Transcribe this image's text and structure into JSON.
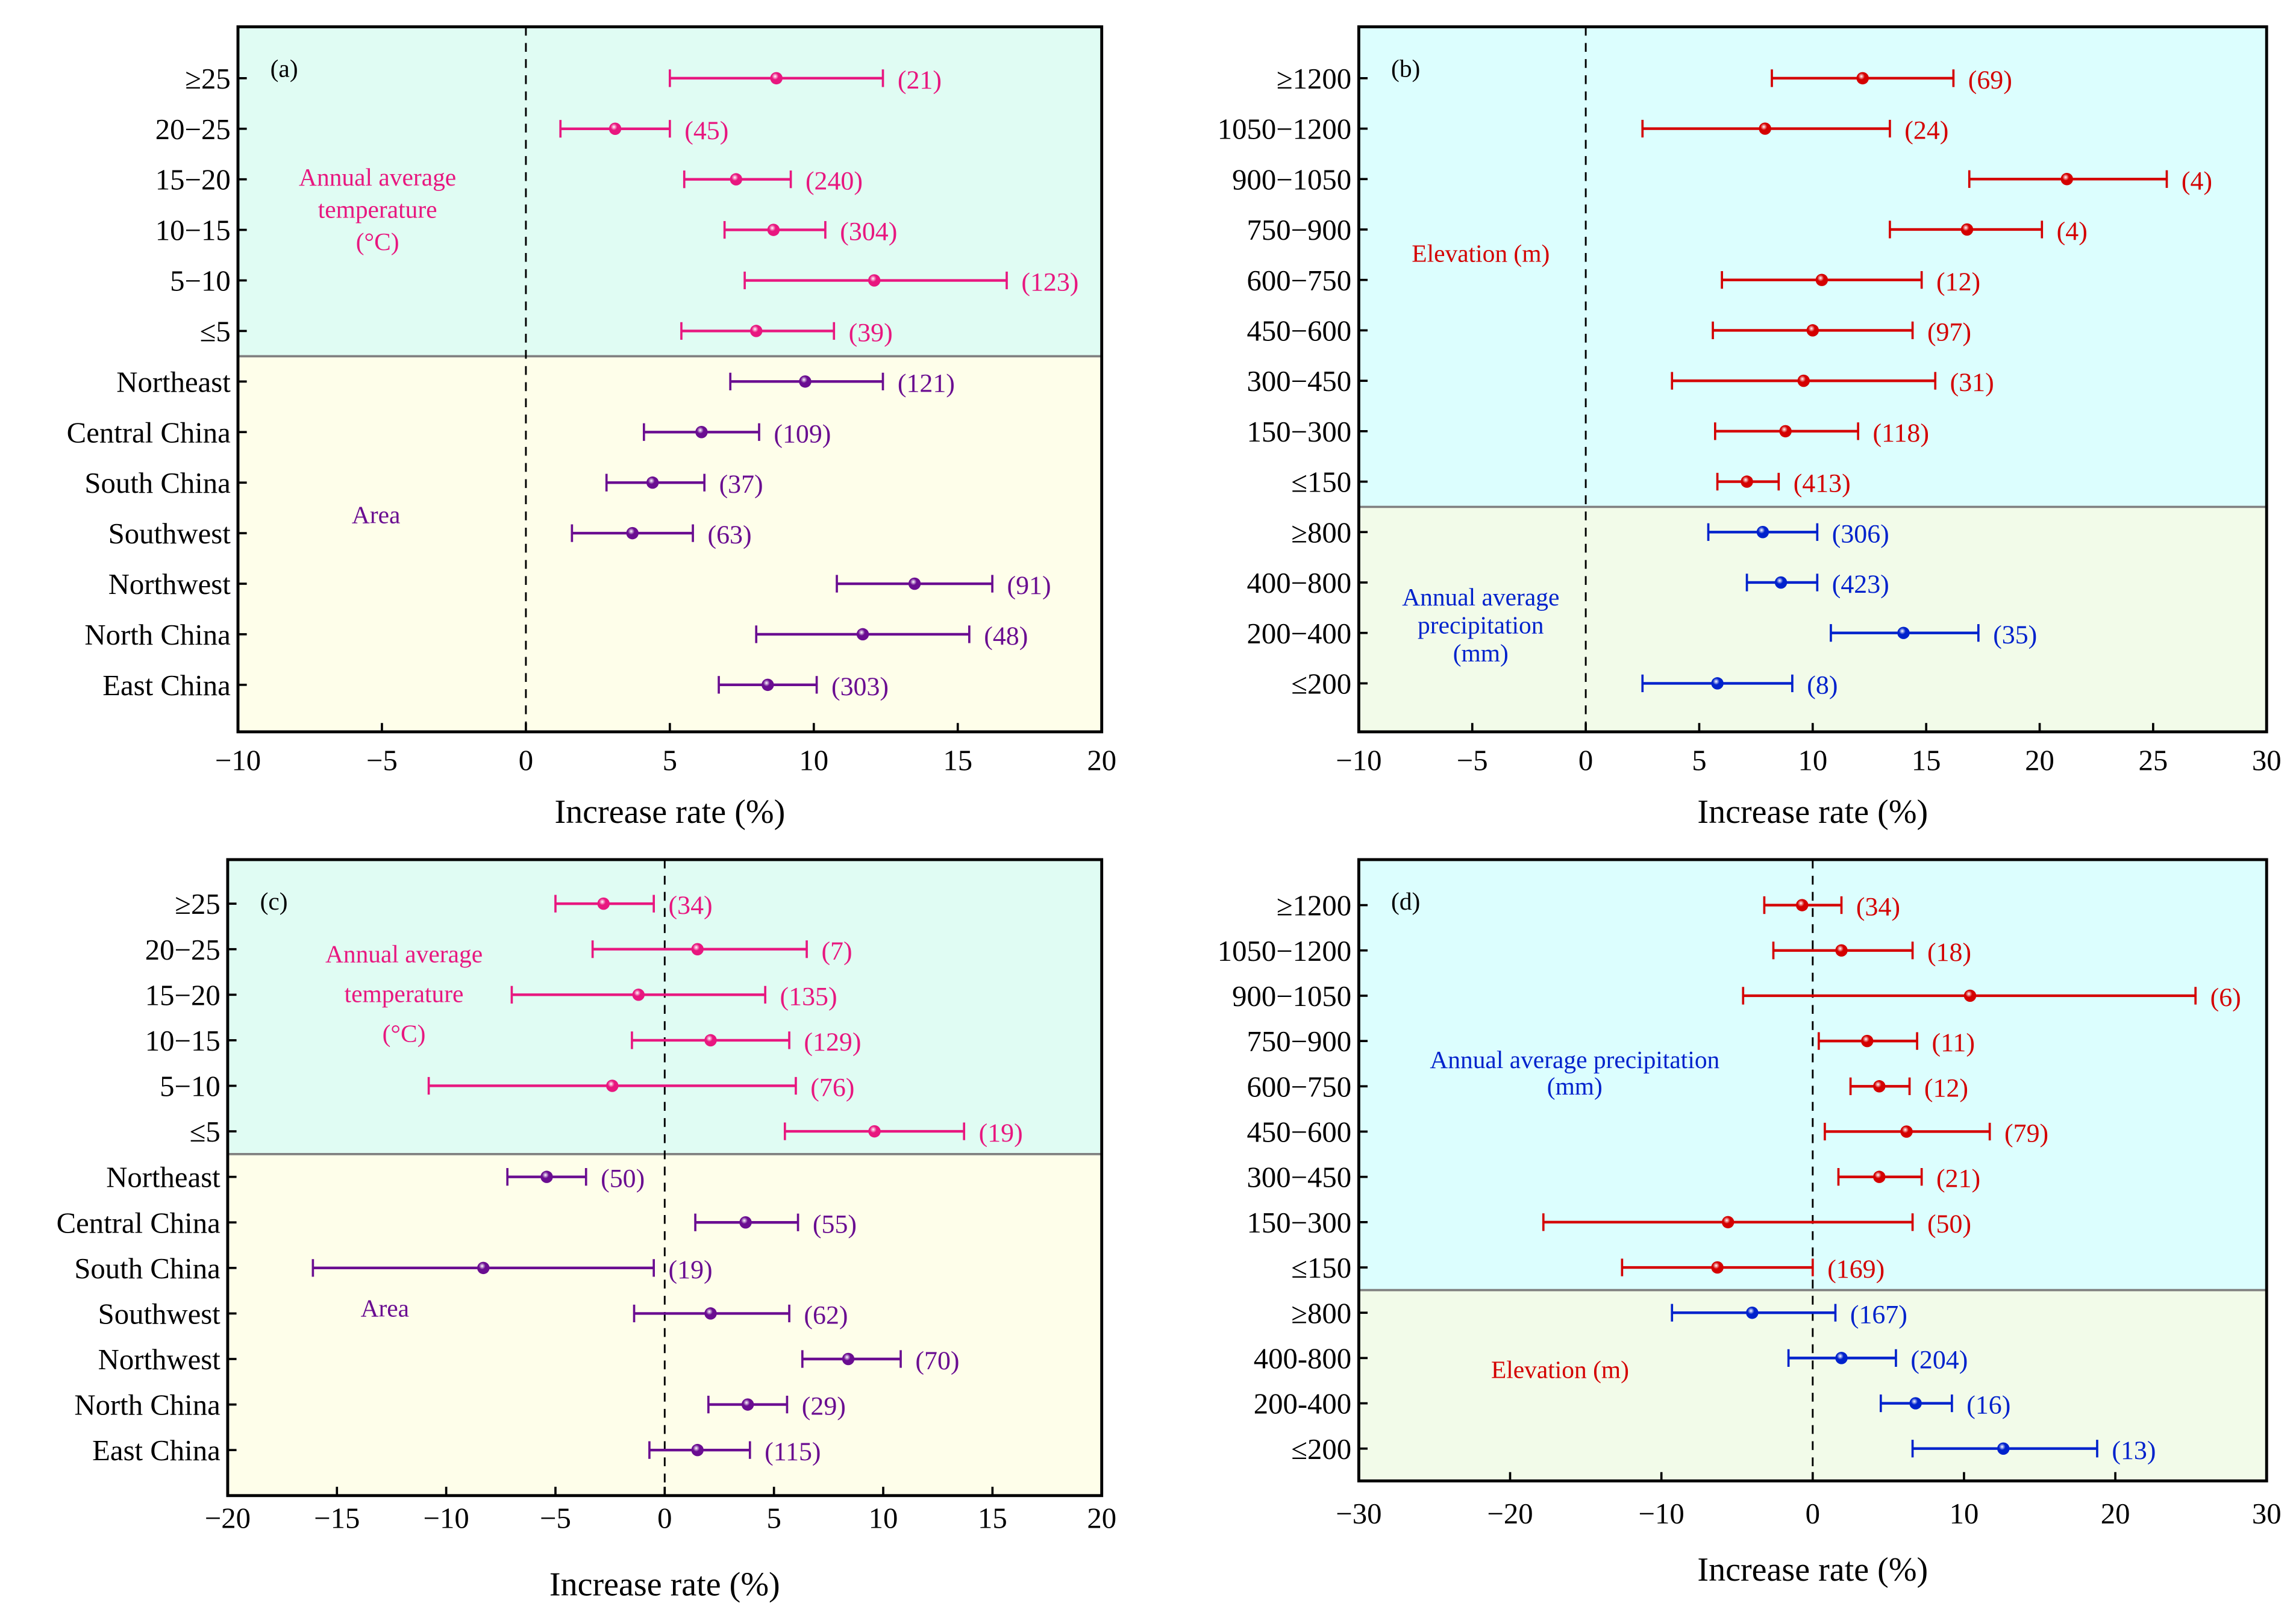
{
  "chart_data": [
    {
      "type": "errorbar",
      "panel_label": "(a)",
      "xlabel": "Increase rate (%)",
      "xlim": [
        -10,
        20
      ],
      "xticks": [
        -10,
        -5,
        0,
        5,
        10,
        15,
        20
      ],
      "reference_line": 0,
      "groups": [
        {
          "name": [
            "Annual average",
            "temperature",
            "(°C)"
          ],
          "color": "#e8177f",
          "bg": "#e0fcf3",
          "rows": [
            {
              "label": "≥25",
              "mean": 8.7,
              "lo": 5.0,
              "hi": 12.4,
              "n": 21
            },
            {
              "label": "20−25",
              "mean": 3.1,
              "lo": 1.2,
              "hi": 5.0,
              "n": 45
            },
            {
              "label": "15−20",
              "mean": 7.3,
              "lo": 5.5,
              "hi": 9.2,
              "n": 240
            },
            {
              "label": "10−15",
              "mean": 8.6,
              "lo": 6.9,
              "hi": 10.4,
              "n": 304
            },
            {
              "label": "5−10",
              "mean": 12.1,
              "lo": 7.6,
              "hi": 16.7,
              "n": 123
            },
            {
              "label": "≤5",
              "mean": 8.0,
              "lo": 5.4,
              "hi": 10.7,
              "n": 39
            }
          ]
        },
        {
          "name": [
            "Area"
          ],
          "color": "#6a0d91",
          "bg": "#fefeea",
          "rows": [
            {
              "label": "Northeast",
              "mean": 9.7,
              "lo": 7.1,
              "hi": 12.4,
              "n": 121
            },
            {
              "label": "Central China",
              "mean": 6.1,
              "lo": 4.1,
              "hi": 8.1,
              "n": 109
            },
            {
              "label": "South China",
              "mean": 4.4,
              "lo": 2.8,
              "hi": 6.2,
              "n": 37
            },
            {
              "label": "Southwest",
              "mean": 3.7,
              "lo": 1.6,
              "hi": 5.8,
              "n": 63
            },
            {
              "label": "Northwest",
              "mean": 13.5,
              "lo": 10.8,
              "hi": 16.2,
              "n": 91
            },
            {
              "label": "North China",
              "mean": 11.7,
              "lo": 8.0,
              "hi": 15.4,
              "n": 48
            },
            {
              "label": "East China",
              "mean": 8.4,
              "lo": 6.7,
              "hi": 10.1,
              "n": 303
            }
          ]
        }
      ]
    },
    {
      "type": "errorbar",
      "panel_label": "(b)",
      "xlabel": "Increase rate (%)",
      "xlim": [
        -10,
        30
      ],
      "xticks": [
        -10,
        -5,
        0,
        5,
        10,
        15,
        20,
        25,
        30
      ],
      "reference_line": 0,
      "groups": [
        {
          "name": [
            "Elevation (m)"
          ],
          "color": "#d40000",
          "bg": "#dcfefe",
          "rows": [
            {
              "label": "≥1200",
              "mean": 12.2,
              "lo": 8.2,
              "hi": 16.2,
              "n": 69
            },
            {
              "label": "1050−1200",
              "mean": 7.9,
              "lo": 2.5,
              "hi": 13.4,
              "n": 24
            },
            {
              "label": "900−1050",
              "mean": 21.2,
              "lo": 16.9,
              "hi": 25.6,
              "n": 4
            },
            {
              "label": "750−900",
              "mean": 16.8,
              "lo": 13.4,
              "hi": 20.1,
              "n": 4
            },
            {
              "label": "600−750",
              "mean": 10.4,
              "lo": 6.0,
              "hi": 14.8,
              "n": 12
            },
            {
              "label": "450−600",
              "mean": 10.0,
              "lo": 5.6,
              "hi": 14.4,
              "n": 97
            },
            {
              "label": "300−450",
              "mean": 9.6,
              "lo": 3.8,
              "hi": 15.4,
              "n": 31
            },
            {
              "label": "150−300",
              "mean": 8.8,
              "lo": 5.7,
              "hi": 12.0,
              "n": 118
            },
            {
              "label": "≤150",
              "mean": 7.1,
              "lo": 5.8,
              "hi": 8.5,
              "n": 413
            }
          ]
        },
        {
          "name": [
            "Annual average",
            "precipitation",
            "(mm)"
          ],
          "color": "#0022cc",
          "bg": "#f2fbe9",
          "rows": [
            {
              "label": "≥800",
              "mean": 7.8,
              "lo": 5.4,
              "hi": 10.2,
              "n": 306
            },
            {
              "label": "400−800",
              "mean": 8.6,
              "lo": 7.1,
              "hi": 10.2,
              "n": 423
            },
            {
              "label": "200−400",
              "mean": 14.0,
              "lo": 10.8,
              "hi": 17.3,
              "n": 35
            },
            {
              "label": "≤200",
              "mean": 5.8,
              "lo": 2.5,
              "hi": 9.1,
              "n": 8
            }
          ]
        }
      ]
    },
    {
      "type": "errorbar",
      "panel_label": "(c)",
      "xlabel": "Increase rate (%)",
      "xlim": [
        -20,
        20
      ],
      "xticks": [
        -20,
        -15,
        -10,
        -5,
        0,
        5,
        10,
        15,
        20
      ],
      "reference_line": 0,
      "groups": [
        {
          "name": [
            "Annual average",
            "temperature",
            "(°C)"
          ],
          "color": "#e8177f",
          "bg": "#e0fcf3",
          "rows": [
            {
              "label": "≥25",
              "mean": -2.8,
              "lo": -5.0,
              "hi": -0.5,
              "n": 34
            },
            {
              "label": "20−25",
              "mean": 1.5,
              "lo": -3.3,
              "hi": 6.5,
              "n": 7
            },
            {
              "label": "15−20",
              "mean": -1.2,
              "lo": -7.0,
              "hi": 4.6,
              "n": 135
            },
            {
              "label": "10−15",
              "mean": 2.1,
              "lo": -1.5,
              "hi": 5.7,
              "n": 129
            },
            {
              "label": "5−10",
              "mean": -2.4,
              "lo": -10.8,
              "hi": 6.0,
              "n": 76
            },
            {
              "label": "≤5",
              "mean": 9.6,
              "lo": 5.5,
              "hi": 13.7,
              "n": 19
            }
          ]
        },
        {
          "name": [
            "Area"
          ],
          "color": "#6a0d91",
          "bg": "#fefeea",
          "rows": [
            {
              "label": "Northeast",
              "mean": -5.4,
              "lo": -7.2,
              "hi": -3.6,
              "n": 50
            },
            {
              "label": "Central China",
              "mean": 3.7,
              "lo": 1.4,
              "hi": 6.1,
              "n": 55
            },
            {
              "label": "South China",
              "mean": -8.3,
              "lo": -16.1,
              "hi": -0.5,
              "n": 19
            },
            {
              "label": "Southwest",
              "mean": 2.1,
              "lo": -1.4,
              "hi": 5.7,
              "n": 62
            },
            {
              "label": "Northwest",
              "mean": 8.4,
              "lo": 6.3,
              "hi": 10.8,
              "n": 70
            },
            {
              "label": "North China",
              "mean": 3.8,
              "lo": 2.0,
              "hi": 5.6,
              "n": 29
            },
            {
              "label": "East China",
              "mean": 1.5,
              "lo": -0.7,
              "hi": 3.9,
              "n": 115
            }
          ]
        }
      ]
    },
    {
      "type": "errorbar",
      "panel_label": "(d)",
      "xlabel": "Increase rate (%)",
      "xlim": [
        -30,
        30
      ],
      "xticks": [
        -30,
        -20,
        -10,
        0,
        10,
        20,
        30
      ],
      "reference_line": 0,
      "groups": [
        {
          "name": [
            "Elevation (m)"
          ],
          "color": "#d40000",
          "bg": "#dcfefe",
          "rows": [
            {
              "label": "≥1200",
              "mean": -0.7,
              "lo": -3.2,
              "hi": 1.9,
              "n": 34
            },
            {
              "label": "1050−1200",
              "mean": 1.9,
              "lo": -2.6,
              "hi": 6.6,
              "n": 18
            },
            {
              "label": "900−1050",
              "mean": 10.4,
              "lo": -4.6,
              "hi": 25.3,
              "n": 6
            },
            {
              "label": "750−900",
              "mean": 3.6,
              "lo": 0.4,
              "hi": 6.9,
              "n": 11
            },
            {
              "label": "600−750",
              "mean": 4.4,
              "lo": 2.5,
              "hi": 6.4,
              "n": 12
            },
            {
              "label": "450−600",
              "mean": 6.2,
              "lo": 0.8,
              "hi": 11.7,
              "n": 79
            },
            {
              "label": "300−450",
              "mean": 4.4,
              "lo": 1.7,
              "hi": 7.2,
              "n": 21
            },
            {
              "label": "150−300",
              "mean": -5.6,
              "lo": -17.8,
              "hi": 6.6,
              "n": 50
            },
            {
              "label": "≤150",
              "mean": -6.3,
              "lo": -12.6,
              "hi": 0.0,
              "n": 169
            }
          ]
        },
        {
          "name": [
            "Annual average precipitation",
            "(mm)"
          ],
          "color": "#0022cc",
          "bg": "#f2fbe9",
          "rows": [
            {
              "label": "≥800",
              "mean": -4.0,
              "lo": -9.3,
              "hi": 1.5,
              "n": 167
            },
            {
              "label": "400-800",
              "mean": 1.9,
              "lo": -1.6,
              "hi": 5.5,
              "n": 204
            },
            {
              "label": "200-400",
              "mean": 6.8,
              "lo": 4.5,
              "hi": 9.2,
              "n": 16
            },
            {
              "label": "≤200",
              "mean": 12.6,
              "lo": 6.6,
              "hi": 18.8,
              "n": 13
            }
          ]
        }
      ]
    }
  ]
}
